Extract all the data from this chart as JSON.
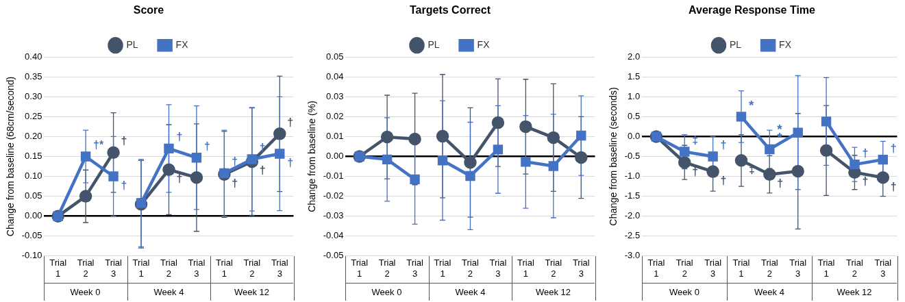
{
  "chart_data": [
    {
      "type": "line",
      "title": "Score",
      "ylabel": "Change from baseline (68cm/second)",
      "legend": "top",
      "grid": "y",
      "categories": [
        "Trial 1",
        "Trial 2",
        "Trial 3",
        "Trial 1",
        "Trial 2",
        "Trial 3",
        "Trial 1",
        "Trial 2",
        "Trial 3"
      ],
      "ylim": [
        -0.1,
        0.4
      ],
      "yticks": [
        {
          "value": -0.1,
          "label": "-0.10"
        },
        {
          "value": -0.05,
          "label": "-0.05"
        },
        {
          "value": 0,
          "label": "0.00"
        },
        {
          "value": 0.05,
          "label": "0.05"
        },
        {
          "value": 0.1,
          "label": "0.10"
        },
        {
          "value": 0.15,
          "label": "0.15"
        },
        {
          "value": 0.2,
          "label": "0.20"
        },
        {
          "value": 0.25,
          "label": "0.25"
        },
        {
          "value": 0.3,
          "label": "0.30"
        },
        {
          "value": 0.35,
          "label": "0.35"
        },
        {
          "value": 0.4,
          "label": "0.40"
        }
      ],
      "series": [
        {
          "name": "PL",
          "color": "#44546a",
          "marker": "circle",
          "values": [
            0,
            0.05,
            0.16,
            0.03,
            0.117,
            0.097,
            0.105,
            0.137,
            0.207
          ],
          "errors": [
            null,
            0.066,
            0.1,
            0.11,
            0.113,
            0.135,
            0.108,
            0.135,
            0.145
          ],
          "value_labels": [
            null,
            null,
            "†",
            null,
            "†",
            null,
            "†",
            "†",
            "†"
          ]
        },
        {
          "name": "FX",
          "color": "#4472c4",
          "marker": "square",
          "values": [
            0,
            0.15,
            0.1,
            0.033,
            0.17,
            0.147,
            0.108,
            0.143,
            0.157
          ],
          "errors": [
            null,
            0.066,
            0.1,
            0.11,
            0.11,
            0.13,
            0.108,
            0.13,
            0.143
          ],
          "value_labels": [
            null,
            "†*",
            "†",
            null,
            "†",
            "†",
            "†",
            "†",
            "†"
          ]
        }
      ],
      "annotations": [
        "Week 0",
        "Week 4",
        "Week 12"
      ]
    },
    {
      "type": "line",
      "title": "Targets Correct",
      "ylabel": "Change from baseline (%)",
      "legend": "top",
      "grid": "y",
      "categories": [
        "Trial 1",
        "Trial 2",
        "Trial 3",
        "Trial 1",
        "Trial 2",
        "Trial 3",
        "Trial 1",
        "Trial 2",
        "Trial 3"
      ],
      "ylim": [
        -0.05,
        0.05
      ],
      "yticks": [
        {
          "value": -0.05,
          "label": "-0.05"
        },
        {
          "value": -0.04,
          "label": "-0.04"
        },
        {
          "value": -0.03,
          "label": "-0.03"
        },
        {
          "value": -0.02,
          "label": "-0.02"
        },
        {
          "value": -0.01,
          "label": "-0.01"
        },
        {
          "value": 0,
          "label": "0.00"
        },
        {
          "value": 0.01,
          "label": "0.01"
        },
        {
          "value": 0.02,
          "label": "0.02"
        },
        {
          "value": 0.03,
          "label": "0.03"
        },
        {
          "value": 0.04,
          "label": "0.04"
        },
        {
          "value": 0.05,
          "label": "0.05"
        }
      ],
      "series": [
        {
          "name": "PL",
          "color": "#44546a",
          "marker": "circle",
          "values": [
            0,
            0.0098,
            0.0088,
            0.0102,
            -0.003,
            0.017,
            0.015,
            0.0095,
            -0.0005
          ],
          "errors": [
            null,
            0.021,
            0.023,
            0.031,
            0.0275,
            0.022,
            0.0238,
            0.027,
            0.0205
          ]
        },
        {
          "name": "FX",
          "color": "#4472c4",
          "marker": "square",
          "values": [
            0,
            -0.0015,
            -0.0115,
            -0.002,
            -0.0098,
            0.0035,
            -0.0027,
            -0.0048,
            0.0105
          ],
          "errors": [
            null,
            0.021,
            0.0225,
            0.03,
            0.027,
            0.022,
            0.0233,
            0.026,
            0.02
          ]
        }
      ],
      "annotations": [
        "Week 0",
        "Week 4",
        "Week 12"
      ]
    },
    {
      "type": "line",
      "title": "Average Response Time",
      "ylabel": "Change from baseline (seconds)",
      "legend": "top",
      "grid": "y",
      "categories": [
        "Trial 1",
        "Trial 2",
        "Trial 3",
        "Trial 1",
        "Trial 2",
        "Trial 3",
        "Trial 1",
        "Trial 2",
        "Trial 3"
      ],
      "ylim": [
        -3,
        2
      ],
      "yticks": [
        {
          "value": -3,
          "label": "-3.0"
        },
        {
          "value": -2.5,
          "label": "-2.5"
        },
        {
          "value": -2,
          "label": "-2.0"
        },
        {
          "value": -1.5,
          "label": "-1.5"
        },
        {
          "value": -1,
          "label": "-1.0"
        },
        {
          "value": -0.5,
          "label": "-0.5"
        },
        {
          "value": 0,
          "label": "0.0"
        },
        {
          "value": 0.5,
          "label": "0.5"
        },
        {
          "value": 1,
          "label": "1.0"
        },
        {
          "value": 1.5,
          "label": "1.5"
        },
        {
          "value": 2,
          "label": "2.0"
        }
      ],
      "series": [
        {
          "name": "PL",
          "color": "#44546a",
          "marker": "circle",
          "values": [
            0,
            -0.65,
            -0.88,
            -0.6,
            -0.95,
            -0.87,
            -0.35,
            -0.9,
            -1.03
          ],
          "errors": [
            null,
            0.43,
            0.49,
            0.65,
            0.47,
            1.45,
            1.13,
            0.43,
            0.47
          ],
          "value_labels": [
            null,
            "†",
            "†",
            "‡",
            "†",
            null,
            null,
            "†",
            "†"
          ]
        },
        {
          "name": "FX",
          "color": "#4472c4",
          "marker": "square",
          "values": [
            0,
            -0.38,
            -0.5,
            0.5,
            -0.32,
            0.1,
            0.38,
            -0.7,
            -0.58
          ],
          "errors": [
            null,
            0.43,
            0.5,
            0.65,
            0.48,
            1.43,
            1.1,
            0.43,
            0.46
          ],
          "value_labels": [
            null,
            "‡",
            "†",
            "*",
            "*\n*",
            null,
            null,
            "†",
            "†"
          ]
        }
      ],
      "annotations": [
        "Week 0",
        "Week 4",
        "Week 12"
      ]
    }
  ]
}
